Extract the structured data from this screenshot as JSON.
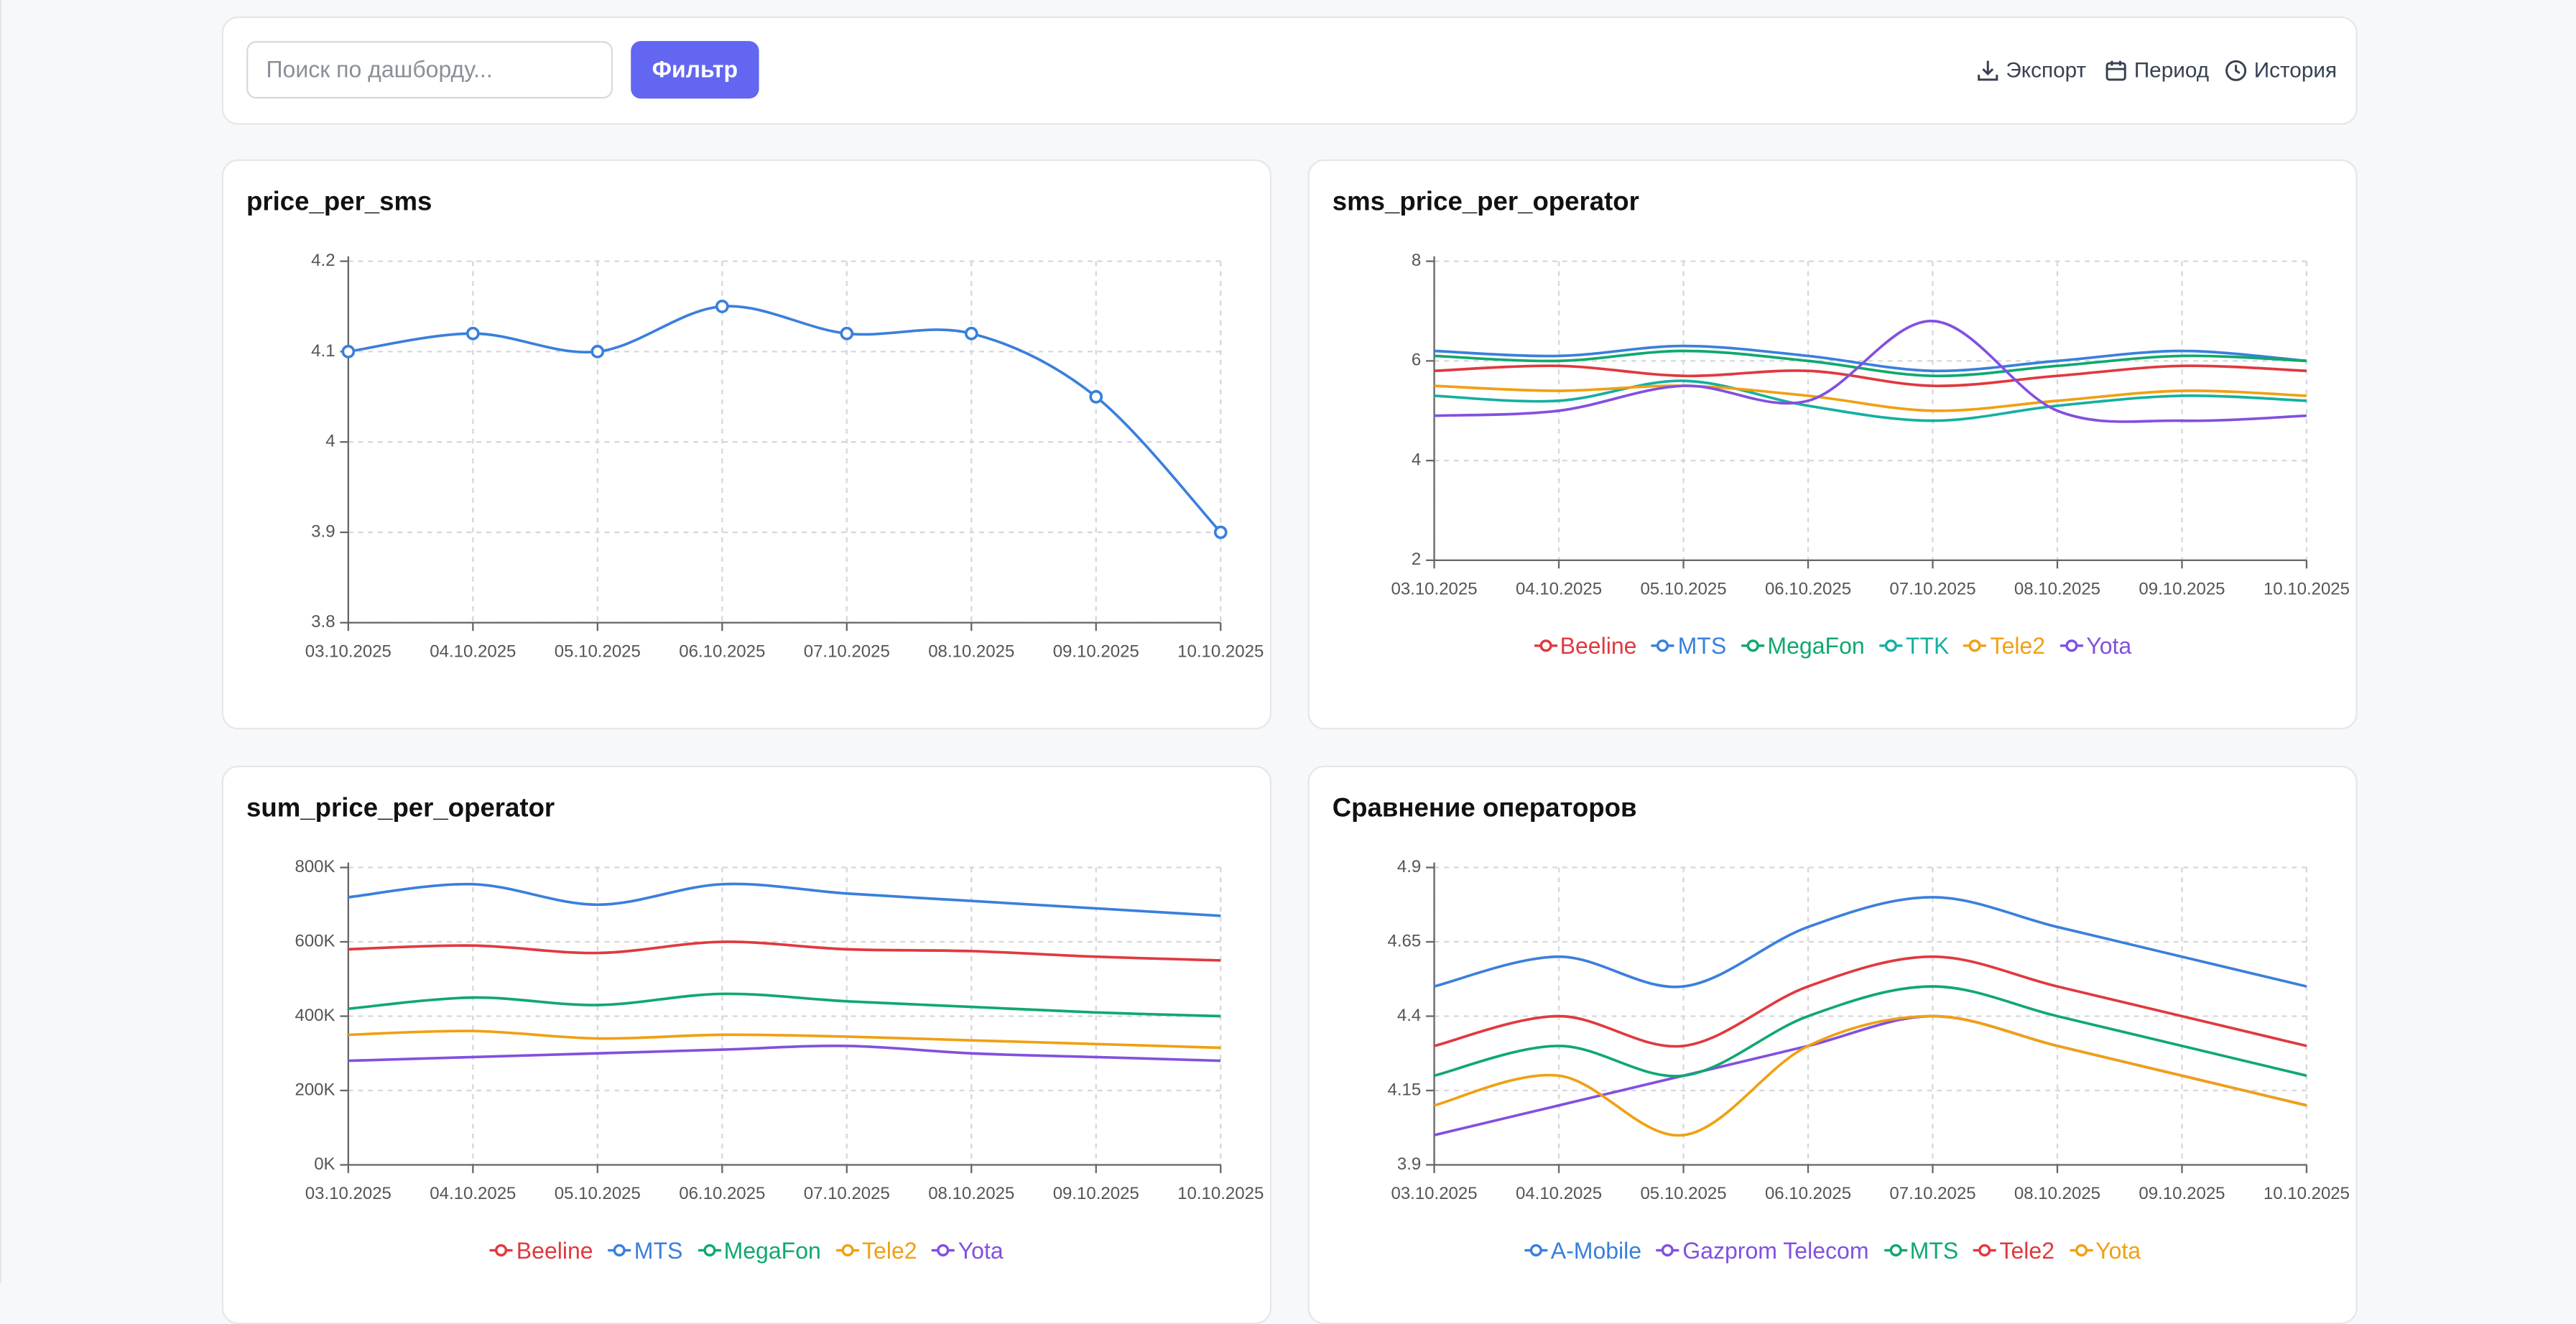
{
  "toolbar": {
    "search_placeholder": "Поиск по дашборду...",
    "filter_button": "Фильтр",
    "export": "Экспорт",
    "period": "Период",
    "history": "История"
  },
  "chart_data": [
    {
      "type": "line",
      "title": "price_per_sms",
      "markers": true,
      "grid": true,
      "categories": [
        "03.10.2025",
        "04.10.2025",
        "05.10.2025",
        "06.10.2025",
        "07.10.2025",
        "08.10.2025",
        "09.10.2025",
        "10.10.2025"
      ],
      "series": [
        {
          "color": "#3a7fdc",
          "values": [
            4.1,
            4.12,
            4.1,
            4.15,
            4.12,
            4.12,
            4.05,
            3.9
          ]
        }
      ],
      "ylim": [
        3.8,
        4.2
      ],
      "yticks": [
        3.8,
        3.9,
        4,
        4.1,
        4.2
      ]
    },
    {
      "type": "line",
      "title": "sms_price_per_operator",
      "grid": true,
      "legend": "bottom",
      "categories": [
        "03.10.2025",
        "04.10.2025",
        "05.10.2025",
        "06.10.2025",
        "07.10.2025",
        "08.10.2025",
        "09.10.2025",
        "10.10.2025"
      ],
      "series": [
        {
          "name": "Beeline",
          "color": "#e0393e",
          "values": [
            5.8,
            5.9,
            5.7,
            5.8,
            5.5,
            5.7,
            5.9,
            5.8
          ]
        },
        {
          "name": "MTS",
          "color": "#3a7fdc",
          "values": [
            6.2,
            6.1,
            6.3,
            6.1,
            5.8,
            6.0,
            6.2,
            6.0
          ]
        },
        {
          "name": "MegaFon",
          "color": "#10a86e",
          "values": [
            6.1,
            6.0,
            6.2,
            6.0,
            5.7,
            5.9,
            6.1,
            6.0
          ]
        },
        {
          "name": "TTK",
          "color": "#14b0a0",
          "values": [
            5.3,
            5.2,
            5.6,
            5.1,
            4.8,
            5.1,
            5.3,
            5.2
          ]
        },
        {
          "name": "Tele2",
          "color": "#f0a012",
          "values": [
            5.5,
            5.4,
            5.5,
            5.3,
            5.0,
            5.2,
            5.4,
            5.3
          ]
        },
        {
          "name": "Yota",
          "color": "#8250df",
          "values": [
            4.9,
            5.0,
            5.5,
            5.2,
            6.8,
            5.0,
            4.8,
            4.9
          ]
        }
      ],
      "ylim": [
        2,
        8
      ],
      "yticks": [
        2,
        4,
        6,
        8
      ]
    },
    {
      "type": "line",
      "title": "sum_price_per_operator",
      "grid": true,
      "legend": "bottom",
      "categories": [
        "03.10.2025",
        "04.10.2025",
        "05.10.2025",
        "06.10.2025",
        "07.10.2025",
        "08.10.2025",
        "09.10.2025",
        "10.10.2025"
      ],
      "series": [
        {
          "name": "Beeline",
          "color": "#e0393e",
          "values": [
            580000,
            590000,
            570000,
            600000,
            580000,
            575000,
            560000,
            550000
          ]
        },
        {
          "name": "MTS",
          "color": "#3a7fdc",
          "values": [
            720000,
            755000,
            700000,
            755000,
            730000,
            710000,
            690000,
            670000
          ]
        },
        {
          "name": "MegaFon",
          "color": "#10a86e",
          "values": [
            420000,
            450000,
            430000,
            460000,
            440000,
            425000,
            410000,
            400000
          ]
        },
        {
          "name": "Tele2",
          "color": "#f0a012",
          "values": [
            350000,
            360000,
            340000,
            350000,
            345000,
            335000,
            325000,
            315000
          ]
        },
        {
          "name": "Yota",
          "color": "#8250df",
          "values": [
            280000,
            290000,
            300000,
            310000,
            320000,
            300000,
            290000,
            280000
          ]
        }
      ],
      "ylim": [
        0,
        800000
      ],
      "yticks": [
        {
          "value": 0,
          "label": "0K"
        },
        {
          "value": 200000,
          "label": "200K"
        },
        {
          "value": 400000,
          "label": "400K"
        },
        {
          "value": 600000,
          "label": "600K"
        },
        {
          "value": 800000,
          "label": "800K"
        }
      ]
    },
    {
      "type": "line",
      "title": "Сравнение операторов",
      "grid": true,
      "legend": "bottom",
      "categories": [
        "03.10.2025",
        "04.10.2025",
        "05.10.2025",
        "06.10.2025",
        "07.10.2025",
        "08.10.2025",
        "09.10.2025",
        "10.10.2025"
      ],
      "series": [
        {
          "name": "A-Mobile",
          "color": "#3a7fdc",
          "values": [
            4.5,
            4.6,
            4.5,
            4.7,
            4.8,
            4.7,
            4.6,
            4.5
          ]
        },
        {
          "name": "Gazprom Telecom",
          "color": "#8250df",
          "values": [
            4.0,
            4.1,
            4.2,
            4.3,
            4.4,
            4.3,
            4.2,
            4.1
          ]
        },
        {
          "name": "MTS",
          "color": "#10a86e",
          "values": [
            4.2,
            4.3,
            4.2,
            4.4,
            4.5,
            4.4,
            4.3,
            4.2
          ]
        },
        {
          "name": "Tele2",
          "color": "#e0393e",
          "values": [
            4.3,
            4.4,
            4.3,
            4.5,
            4.6,
            4.5,
            4.4,
            4.3
          ]
        },
        {
          "name": "Yota",
          "color": "#f0a012",
          "values": [
            4.1,
            4.2,
            4.0,
            4.3,
            4.4,
            4.3,
            4.2,
            4.1
          ]
        }
      ],
      "ylim": [
        3.9,
        4.9
      ],
      "yticks": [
        3.9,
        4.15,
        4.4,
        4.65,
        4.9
      ]
    }
  ]
}
